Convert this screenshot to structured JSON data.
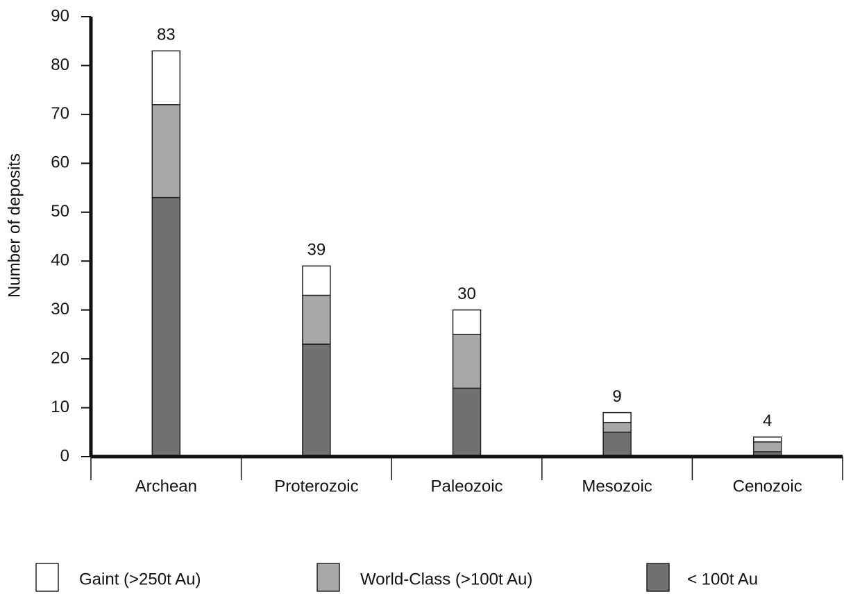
{
  "chart_data": {
    "type": "bar",
    "stacked": true,
    "y_label": "Number of deposits",
    "categories": [
      "Archean",
      "Proterozoic",
      "Paleozoic",
      "Mesozoic",
      "Cenozoic"
    ],
    "series": [
      {
        "name": "Gaint (>250t Au)",
        "color": "#ffffff",
        "values": [
          11,
          6,
          5,
          2,
          1
        ]
      },
      {
        "name": "World-Class (>100t Au)",
        "color": "#a8a8a8",
        "values": [
          19,
          10,
          11,
          2,
          2
        ]
      },
      {
        "name": "< 100t Au",
        "color": "#717171",
        "values": [
          53,
          23,
          14,
          5,
          1
        ]
      }
    ],
    "totals": [
      83,
      39,
      30,
      9,
      4
    ],
    "ylim": [
      0,
      90
    ],
    "yticks": [
      0,
      10,
      20,
      30,
      40,
      50,
      60,
      70,
      80,
      90
    ]
  }
}
